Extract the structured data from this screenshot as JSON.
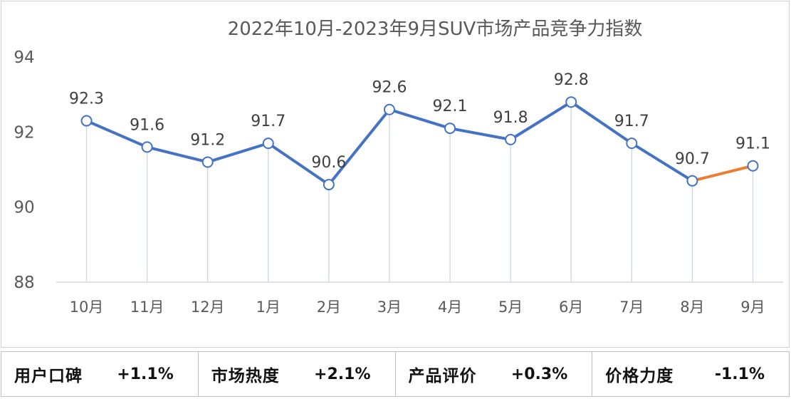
{
  "chart_data": {
    "type": "line",
    "title": "2022年10月-2023年9月SUV市场产品竞争力指数",
    "categories": [
      "10月",
      "11月",
      "12月",
      "1月",
      "2月",
      "3月",
      "4月",
      "5月",
      "6月",
      "7月",
      "8月",
      "9月"
    ],
    "values": [
      92.3,
      91.6,
      91.2,
      91.7,
      90.6,
      92.6,
      92.1,
      91.8,
      92.8,
      91.7,
      90.7,
      91.1
    ],
    "data_labels": [
      "92.3",
      "91.6",
      "91.2",
      "91.7",
      "90.6",
      "92.6",
      "92.1",
      "91.8",
      "92.8",
      "91.7",
      "90.7",
      "91.1"
    ],
    "ylim": [
      88,
      94
    ],
    "yticks": [
      "88",
      "90",
      "92",
      "94"
    ],
    "xlabel": "",
    "ylabel": "",
    "grid": false,
    "line_color": "#4472c4",
    "highlight_color": "#ed7d31",
    "drop_line_color": "#c9d7e8"
  },
  "metrics": [
    {
      "label": "用户口碑",
      "value": "+1.1%"
    },
    {
      "label": "市场热度",
      "value": "+2.1%"
    },
    {
      "label": "产品评价",
      "value": "+0.3%"
    },
    {
      "label": "价格力度",
      "value": "-1.1%"
    }
  ]
}
